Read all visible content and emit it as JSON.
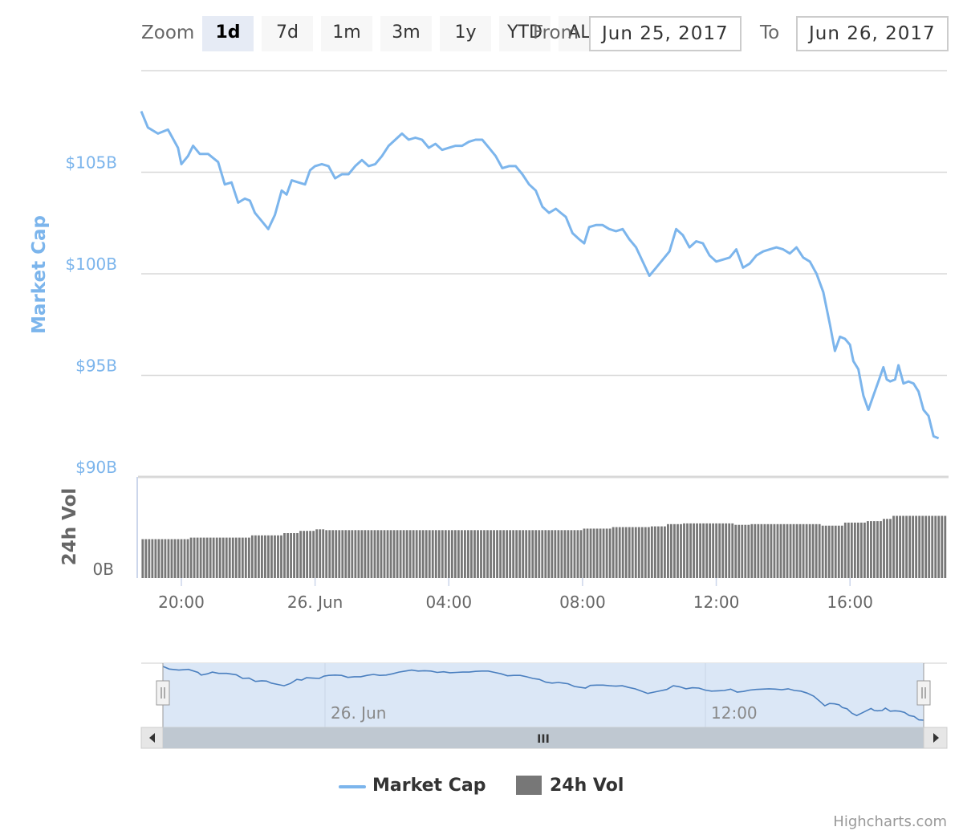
{
  "toolbar": {
    "zoom_label": "Zoom",
    "buttons": [
      "1d",
      "7d",
      "1m",
      "3m",
      "1y",
      "YTD",
      "ALL"
    ],
    "active_button": "1d",
    "from_label": "From",
    "to_label": "To",
    "from_value": "Jun 25, 2017",
    "to_value": "Jun 26, 2017"
  },
  "legend": {
    "items": [
      {
        "label": "Market Cap",
        "color": "#7cb5ec",
        "symbol": "line"
      },
      {
        "label": "24h Vol",
        "color": "#777777",
        "symbol": "square"
      }
    ]
  },
  "credit": "Highcharts.com",
  "navigator": {
    "labels": [
      "26. Jun",
      "12:00"
    ],
    "scroll_thumb": "III"
  },
  "chart_data": {
    "type": "line",
    "x_axis": {
      "unit": "hours since 2017-06-25 00:00",
      "range": [
        18.8,
        42.9
      ],
      "ticks": [
        {
          "x": 20,
          "label": "20:00"
        },
        {
          "x": 24,
          "label": "26. Jun"
        },
        {
          "x": 28,
          "label": "04:00"
        },
        {
          "x": 32,
          "label": "08:00"
        },
        {
          "x": 36,
          "label": "12:00"
        },
        {
          "x": 40,
          "label": "16:00"
        }
      ]
    },
    "panes": [
      {
        "name": "market_cap",
        "ylabel": "Market Cap",
        "ylim": [
          90,
          110
        ],
        "y_ticks": [
          {
            "v": 90,
            "label": "$90B"
          },
          {
            "v": 95,
            "label": "$95B"
          },
          {
            "v": 100,
            "label": "$100B"
          },
          {
            "v": 105,
            "label": "$105B"
          }
        ],
        "color": "#7cb5ec"
      },
      {
        "name": "volume",
        "ylabel": "24h Vol",
        "ylim": [
          0,
          13.5
        ],
        "y_ticks": [
          {
            "v": 0,
            "label": "0B"
          }
        ],
        "color": "#777777"
      }
    ],
    "series": [
      {
        "name": "Market Cap",
        "unit": "USD billions",
        "points": [
          [
            18.8,
            108.0
          ],
          [
            19.0,
            107.2
          ],
          [
            19.3,
            106.9
          ],
          [
            19.6,
            107.1
          ],
          [
            19.9,
            106.2
          ],
          [
            20.0,
            105.4
          ],
          [
            20.2,
            105.8
          ],
          [
            20.35,
            106.3
          ],
          [
            20.55,
            105.9
          ],
          [
            20.8,
            105.9
          ],
          [
            21.1,
            105.5
          ],
          [
            21.3,
            104.4
          ],
          [
            21.5,
            104.5
          ],
          [
            21.7,
            103.5
          ],
          [
            21.9,
            103.7
          ],
          [
            22.05,
            103.6
          ],
          [
            22.2,
            103.0
          ],
          [
            22.4,
            102.6
          ],
          [
            22.6,
            102.2
          ],
          [
            22.8,
            102.9
          ],
          [
            23.0,
            104.1
          ],
          [
            23.15,
            103.9
          ],
          [
            23.3,
            104.6
          ],
          [
            23.5,
            104.5
          ],
          [
            23.7,
            104.4
          ],
          [
            23.85,
            105.1
          ],
          [
            24.0,
            105.3
          ],
          [
            24.2,
            105.4
          ],
          [
            24.4,
            105.3
          ],
          [
            24.6,
            104.7
          ],
          [
            24.8,
            104.9
          ],
          [
            25.0,
            104.9
          ],
          [
            25.2,
            105.3
          ],
          [
            25.4,
            105.6
          ],
          [
            25.6,
            105.3
          ],
          [
            25.8,
            105.4
          ],
          [
            26.0,
            105.8
          ],
          [
            26.2,
            106.3
          ],
          [
            26.4,
            106.6
          ],
          [
            26.6,
            106.9
          ],
          [
            26.8,
            106.6
          ],
          [
            27.0,
            106.7
          ],
          [
            27.2,
            106.6
          ],
          [
            27.4,
            106.2
          ],
          [
            27.6,
            106.4
          ],
          [
            27.8,
            106.1
          ],
          [
            28.0,
            106.2
          ],
          [
            28.2,
            106.3
          ],
          [
            28.4,
            106.3
          ],
          [
            28.6,
            106.5
          ],
          [
            28.8,
            106.6
          ],
          [
            29.0,
            106.6
          ],
          [
            29.2,
            106.2
          ],
          [
            29.4,
            105.8
          ],
          [
            29.6,
            105.2
          ],
          [
            29.8,
            105.3
          ],
          [
            30.0,
            105.3
          ],
          [
            30.2,
            104.9
          ],
          [
            30.4,
            104.4
          ],
          [
            30.6,
            104.1
          ],
          [
            30.8,
            103.3
          ],
          [
            31.0,
            103.0
          ],
          [
            31.2,
            103.2
          ],
          [
            31.35,
            103.0
          ],
          [
            31.5,
            102.8
          ],
          [
            31.7,
            102.0
          ],
          [
            31.9,
            101.7
          ],
          [
            32.05,
            101.5
          ],
          [
            32.2,
            102.3
          ],
          [
            32.4,
            102.4
          ],
          [
            32.6,
            102.4
          ],
          [
            32.8,
            102.2
          ],
          [
            33.0,
            102.1
          ],
          [
            33.2,
            102.2
          ],
          [
            33.4,
            101.7
          ],
          [
            33.6,
            101.3
          ],
          [
            33.8,
            100.6
          ],
          [
            34.0,
            99.9
          ],
          [
            34.2,
            100.3
          ],
          [
            34.4,
            100.7
          ],
          [
            34.6,
            101.1
          ],
          [
            34.8,
            102.2
          ],
          [
            35.0,
            101.9
          ],
          [
            35.2,
            101.3
          ],
          [
            35.4,
            101.6
          ],
          [
            35.6,
            101.5
          ],
          [
            35.8,
            100.9
          ],
          [
            36.0,
            100.6
          ],
          [
            36.2,
            100.7
          ],
          [
            36.4,
            100.8
          ],
          [
            36.6,
            101.2
          ],
          [
            36.8,
            100.3
          ],
          [
            37.0,
            100.5
          ],
          [
            37.2,
            100.9
          ],
          [
            37.4,
            101.1
          ],
          [
            37.6,
            101.2
          ],
          [
            37.8,
            101.3
          ],
          [
            38.0,
            101.2
          ],
          [
            38.2,
            101.0
          ],
          [
            38.4,
            101.3
          ],
          [
            38.6,
            100.8
          ],
          [
            38.8,
            100.6
          ],
          [
            39.0,
            100.0
          ],
          [
            39.2,
            99.1
          ],
          [
            39.4,
            97.5
          ],
          [
            39.55,
            96.2
          ],
          [
            39.7,
            96.9
          ],
          [
            39.85,
            96.8
          ],
          [
            40.0,
            96.5
          ],
          [
            40.1,
            95.7
          ],
          [
            40.25,
            95.3
          ],
          [
            40.4,
            94.0
          ],
          [
            40.55,
            93.3
          ],
          [
            40.7,
            94.0
          ],
          [
            40.85,
            94.7
          ],
          [
            41.0,
            95.4
          ],
          [
            41.1,
            94.8
          ],
          [
            41.2,
            94.7
          ],
          [
            41.35,
            94.8
          ],
          [
            41.45,
            95.5
          ],
          [
            41.6,
            94.6
          ],
          [
            41.75,
            94.7
          ],
          [
            41.9,
            94.6
          ],
          [
            42.05,
            94.2
          ],
          [
            42.2,
            93.3
          ],
          [
            42.35,
            93.0
          ],
          [
            42.5,
            92.0
          ],
          [
            42.65,
            91.9
          ]
        ]
      },
      {
        "name": "24h Vol",
        "unit": "USD billions",
        "type": "column",
        "points": [
          [
            18.8,
            5.2
          ],
          [
            19.8,
            5.2
          ],
          [
            20.2,
            5.4
          ],
          [
            21.8,
            5.4
          ],
          [
            22.1,
            5.7
          ],
          [
            23.0,
            6.0
          ],
          [
            23.5,
            6.3
          ],
          [
            24.0,
            6.5
          ],
          [
            24.3,
            6.4
          ],
          [
            27.0,
            6.4
          ],
          [
            30.0,
            6.4
          ],
          [
            32.0,
            6.6
          ],
          [
            32.9,
            6.8
          ],
          [
            34.0,
            6.9
          ],
          [
            34.5,
            7.2
          ],
          [
            35.0,
            7.3
          ],
          [
            36.5,
            7.1
          ],
          [
            37.0,
            7.2
          ],
          [
            38.5,
            7.2
          ],
          [
            39.1,
            7.0
          ],
          [
            39.8,
            7.4
          ],
          [
            40.5,
            7.6
          ],
          [
            41.0,
            7.9
          ],
          [
            41.3,
            8.3
          ],
          [
            42.9,
            8.4
          ]
        ]
      }
    ],
    "grid": true,
    "legend_position": "bottom-center"
  }
}
